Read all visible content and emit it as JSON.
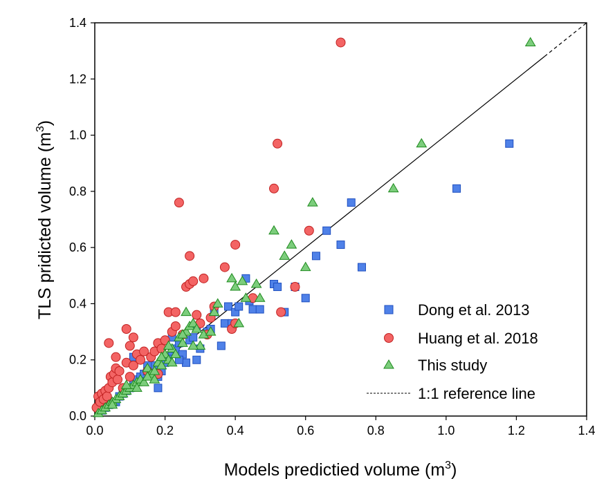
{
  "chart_data": {
    "type": "scatter",
    "title": "",
    "xlabel": "Models predictied volume (m",
    "xlabel_sup": "3",
    "xlabel_end": ")",
    "ylabel": "TLS pridicted volume (m",
    "ylabel_sup": "3",
    "ylabel_end": ")",
    "xlim": [
      0.0,
      1.4
    ],
    "ylim": [
      0.0,
      1.4
    ],
    "xticks": [
      "0.0",
      "0.2",
      "0.4",
      "0.6",
      "0.8",
      "1.0",
      "1.2",
      "1.4"
    ],
    "yticks": [
      "0.0",
      "0.2",
      "0.4",
      "0.6",
      "0.8",
      "1.0",
      "1.2",
      "1.4"
    ],
    "grid": false,
    "legend_position": "bottom-right",
    "reference_line": {
      "name": "1:1 reference line",
      "from": [
        0,
        0
      ],
      "to": [
        1.4,
        1.4
      ],
      "style": "solid-then-dashed",
      "color": "#000000"
    },
    "series": [
      {
        "name": "Dong et al. 2013",
        "marker": "square",
        "color": "#4f81e8",
        "stroke": "#1f4fbf",
        "points": [
          [
            0.02,
            0.02
          ],
          [
            0.03,
            0.03
          ],
          [
            0.04,
            0.04
          ],
          [
            0.05,
            0.05
          ],
          [
            0.06,
            0.05
          ],
          [
            0.07,
            0.07
          ],
          [
            0.08,
            0.08
          ],
          [
            0.09,
            0.09
          ],
          [
            0.1,
            0.1
          ],
          [
            0.11,
            0.12
          ],
          [
            0.12,
            0.13
          ],
          [
            0.13,
            0.14
          ],
          [
            0.14,
            0.15
          ],
          [
            0.15,
            0.16
          ],
          [
            0.16,
            0.17
          ],
          [
            0.17,
            0.18
          ],
          [
            0.18,
            0.1
          ],
          [
            0.19,
            0.16
          ],
          [
            0.2,
            0.19
          ],
          [
            0.21,
            0.21
          ],
          [
            0.22,
            0.23
          ],
          [
            0.23,
            0.24
          ],
          [
            0.24,
            0.26
          ],
          [
            0.25,
            0.22
          ],
          [
            0.26,
            0.19
          ],
          [
            0.27,
            0.27
          ],
          [
            0.28,
            0.28
          ],
          [
            0.29,
            0.2
          ],
          [
            0.29,
            0.32
          ],
          [
            0.3,
            0.24
          ],
          [
            0.32,
            0.3
          ],
          [
            0.33,
            0.31
          ],
          [
            0.34,
            0.37
          ],
          [
            0.36,
            0.25
          ],
          [
            0.37,
            0.33
          ],
          [
            0.38,
            0.39
          ],
          [
            0.39,
            0.33
          ],
          [
            0.4,
            0.37
          ],
          [
            0.41,
            0.39
          ],
          [
            0.43,
            0.49
          ],
          [
            0.44,
            0.41
          ],
          [
            0.45,
            0.38
          ],
          [
            0.47,
            0.38
          ],
          [
            0.51,
            0.47
          ],
          [
            0.52,
            0.46
          ],
          [
            0.54,
            0.37
          ],
          [
            0.57,
            0.46
          ],
          [
            0.6,
            0.42
          ],
          [
            0.63,
            0.57
          ],
          [
            0.66,
            0.66
          ],
          [
            0.7,
            0.61
          ],
          [
            0.73,
            0.76
          ],
          [
            0.76,
            0.53
          ],
          [
            1.03,
            0.81
          ],
          [
            1.18,
            0.97
          ],
          [
            0.11,
            0.21
          ],
          [
            0.15,
            0.18
          ],
          [
            0.18,
            0.14
          ],
          [
            0.22,
            0.28
          ],
          [
            0.24,
            0.2
          ]
        ]
      },
      {
        "name": "Huang et al. 2018",
        "marker": "circle",
        "color": "#f36464",
        "stroke": "#c02020",
        "points": [
          [
            0.005,
            0.03
          ],
          [
            0.01,
            0.07
          ],
          [
            0.015,
            0.05
          ],
          [
            0.02,
            0.08
          ],
          [
            0.025,
            0.06
          ],
          [
            0.03,
            0.09
          ],
          [
            0.035,
            0.07
          ],
          [
            0.04,
            0.1
          ],
          [
            0.04,
            0.26
          ],
          [
            0.045,
            0.14
          ],
          [
            0.05,
            0.12
          ],
          [
            0.055,
            0.15
          ],
          [
            0.06,
            0.21
          ],
          [
            0.06,
            0.17
          ],
          [
            0.065,
            0.13
          ],
          [
            0.07,
            0.16
          ],
          [
            0.08,
            0.1
          ],
          [
            0.09,
            0.31
          ],
          [
            0.09,
            0.19
          ],
          [
            0.1,
            0.25
          ],
          [
            0.1,
            0.14
          ],
          [
            0.11,
            0.28
          ],
          [
            0.11,
            0.18
          ],
          [
            0.12,
            0.22
          ],
          [
            0.13,
            0.2
          ],
          [
            0.14,
            0.23
          ],
          [
            0.15,
            0.16
          ],
          [
            0.16,
            0.21
          ],
          [
            0.17,
            0.23
          ],
          [
            0.18,
            0.26
          ],
          [
            0.19,
            0.24
          ],
          [
            0.2,
            0.27
          ],
          [
            0.21,
            0.37
          ],
          [
            0.22,
            0.3
          ],
          [
            0.23,
            0.37
          ],
          [
            0.24,
            0.76
          ],
          [
            0.25,
            0.29
          ],
          [
            0.26,
            0.46
          ],
          [
            0.27,
            0.57
          ],
          [
            0.27,
            0.47
          ],
          [
            0.28,
            0.48
          ],
          [
            0.29,
            0.36
          ],
          [
            0.3,
            0.33
          ],
          [
            0.31,
            0.49
          ],
          [
            0.32,
            0.29
          ],
          [
            0.33,
            0.35
          ],
          [
            0.34,
            0.39
          ],
          [
            0.37,
            0.53
          ],
          [
            0.39,
            0.31
          ],
          [
            0.4,
            0.61
          ],
          [
            0.4,
            0.33
          ],
          [
            0.45,
            0.42
          ],
          [
            0.51,
            0.81
          ],
          [
            0.52,
            0.97
          ],
          [
            0.53,
            0.37
          ],
          [
            0.57,
            0.46
          ],
          [
            0.61,
            0.66
          ],
          [
            0.7,
            1.33
          ],
          [
            0.18,
            0.15
          ],
          [
            0.23,
            0.32
          ]
        ]
      },
      {
        "name": "This study",
        "marker": "triangle",
        "color": "#7ccd7c",
        "stroke": "#1e8a1e",
        "points": [
          [
            0.01,
            0.01
          ],
          [
            0.02,
            0.02
          ],
          [
            0.03,
            0.03
          ],
          [
            0.04,
            0.04
          ],
          [
            0.05,
            0.05
          ],
          [
            0.06,
            0.06
          ],
          [
            0.07,
            0.07
          ],
          [
            0.08,
            0.08
          ],
          [
            0.09,
            0.09
          ],
          [
            0.1,
            0.1
          ],
          [
            0.11,
            0.11
          ],
          [
            0.12,
            0.12
          ],
          [
            0.13,
            0.13
          ],
          [
            0.14,
            0.12
          ],
          [
            0.15,
            0.17
          ],
          [
            0.16,
            0.15
          ],
          [
            0.17,
            0.16
          ],
          [
            0.18,
            0.19
          ],
          [
            0.19,
            0.18
          ],
          [
            0.2,
            0.22
          ],
          [
            0.21,
            0.2
          ],
          [
            0.22,
            0.24
          ],
          [
            0.23,
            0.22
          ],
          [
            0.24,
            0.28
          ],
          [
            0.25,
            0.26
          ],
          [
            0.26,
            0.37
          ],
          [
            0.26,
            0.3
          ],
          [
            0.27,
            0.32
          ],
          [
            0.28,
            0.33
          ],
          [
            0.29,
            0.31
          ],
          [
            0.3,
            0.25
          ],
          [
            0.31,
            0.29
          ],
          [
            0.33,
            0.3
          ],
          [
            0.34,
            0.37
          ],
          [
            0.35,
            0.4
          ],
          [
            0.39,
            0.49
          ],
          [
            0.4,
            0.46
          ],
          [
            0.41,
            0.33
          ],
          [
            0.42,
            0.48
          ],
          [
            0.43,
            0.42
          ],
          [
            0.46,
            0.47
          ],
          [
            0.47,
            0.42
          ],
          [
            0.51,
            0.66
          ],
          [
            0.54,
            0.57
          ],
          [
            0.56,
            0.61
          ],
          [
            0.6,
            0.53
          ],
          [
            0.62,
            0.76
          ],
          [
            0.85,
            0.81
          ],
          [
            0.93,
            0.97
          ],
          [
            1.24,
            1.33
          ],
          [
            0.15,
            0.14
          ],
          [
            0.19,
            0.21
          ],
          [
            0.22,
            0.19
          ],
          [
            0.25,
            0.29
          ],
          [
            0.28,
            0.25
          ],
          [
            0.12,
            0.1
          ],
          [
            0.09,
            0.11
          ],
          [
            0.05,
            0.04
          ],
          [
            0.17,
            0.13
          ],
          [
            0.21,
            0.25
          ]
        ]
      }
    ]
  }
}
